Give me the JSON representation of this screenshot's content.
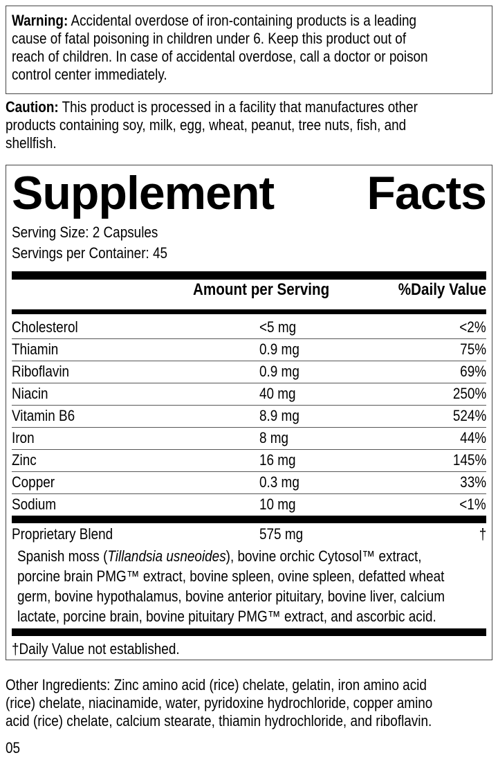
{
  "warning": {
    "label": "Warning:",
    "lines": [
      " Accidental overdose of iron-containing products is a leading",
      "cause of fatal poisoning in children under 6. Keep this product out of",
      "reach of children. In case of accidental overdose, call a doctor or poison",
      "control center immediately."
    ]
  },
  "caution": {
    "label": "Caution:",
    "lines": [
      " This product is processed in a facility that manufactures other",
      "products containing soy, milk, egg, wheat, peanut, tree nuts, fish, and",
      "shellfish."
    ]
  },
  "facts": {
    "title_word1": "Supplement",
    "title_word2": "Facts",
    "serving_size": "Serving Size: 2 Capsules",
    "servings_per_container": "Servings per Container: 45",
    "header_amount": "Amount per Serving",
    "header_dv": "%Daily Value",
    "rows": [
      {
        "name": "Cholesterol",
        "amount": "<5 mg",
        "dv": "<2%"
      },
      {
        "name": "Thiamin",
        "amount": "0.9 mg",
        "dv": "75%"
      },
      {
        "name": "Riboflavin",
        "amount": "0.9 mg",
        "dv": "69%"
      },
      {
        "name": "Niacin",
        "amount": "40 mg",
        "dv": "250%"
      },
      {
        "name": "Vitamin B6",
        "amount": "8.9 mg",
        "dv": "524%"
      },
      {
        "name": "Iron",
        "amount": "8 mg",
        "dv": "44%"
      },
      {
        "name": "Zinc",
        "amount": "16 mg",
        "dv": "145%"
      },
      {
        "name": "Copper",
        "amount": "0.3 mg",
        "dv": "33%"
      },
      {
        "name": "Sodium",
        "amount": "10 mg",
        "dv": "<1%"
      }
    ],
    "blend": {
      "name": "Proprietary Blend",
      "amount": "575 mg",
      "dv": "†",
      "desc_pre": "Spanish moss (",
      "desc_italic": "Tillandsia usneoides",
      "desc_line1_post": "), bovine orchic Cytosol™ extract,",
      "desc_lines": [
        "porcine brain PMG™ extract, bovine spleen, ovine spleen, defatted wheat",
        "germ, bovine hypothalamus, bovine anterior pituitary, bovine liver, calcium",
        "lactate, porcine brain, bovine pituitary PMG™ extract, and ascorbic acid."
      ]
    },
    "footnote": "†Daily Value not established."
  },
  "other_ingredients": {
    "lines": [
      "Other Ingredients: Zinc amino acid (rice) chelate, gelatin, iron amino acid",
      "(rice) chelate, niacinamide, water, pyridoxine hydrochloride, copper amino",
      "acid (rice) chelate, calcium stearate, thiamin hydrochloride, and riboflavin."
    ]
  },
  "code": "05"
}
